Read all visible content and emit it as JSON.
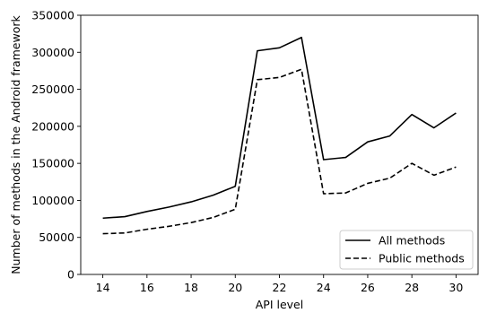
{
  "chart_data": {
    "type": "line",
    "xlabel": "API level",
    "ylabel": "Number of methods in the Android framework",
    "xlim": [
      13,
      31
    ],
    "ylim": [
      0,
      350000
    ],
    "xticks": [
      14,
      16,
      18,
      20,
      22,
      24,
      26,
      28,
      30
    ],
    "yticks": [
      0,
      50000,
      100000,
      150000,
      200000,
      250000,
      300000,
      350000
    ],
    "x": [
      14,
      15,
      16,
      17,
      18,
      19,
      20,
      21,
      22,
      23,
      24,
      25,
      26,
      27,
      28,
      29,
      30
    ],
    "series": [
      {
        "name": "All methods",
        "style": "solid",
        "color": "#000000",
        "values": [
          76000,
          78000,
          85000,
          91000,
          98000,
          107000,
          119000,
          302000,
          306000,
          320000,
          155000,
          158000,
          179000,
          187000,
          216000,
          198000,
          218000
        ]
      },
      {
        "name": "Public methods",
        "style": "dashed",
        "color": "#000000",
        "values": [
          55000,
          56000,
          61000,
          65000,
          70000,
          77000,
          88000,
          263000,
          266000,
          277000,
          109000,
          110000,
          123000,
          130000,
          150000,
          134000,
          145000
        ]
      }
    ],
    "legend": "lower-right",
    "grid": false
  }
}
